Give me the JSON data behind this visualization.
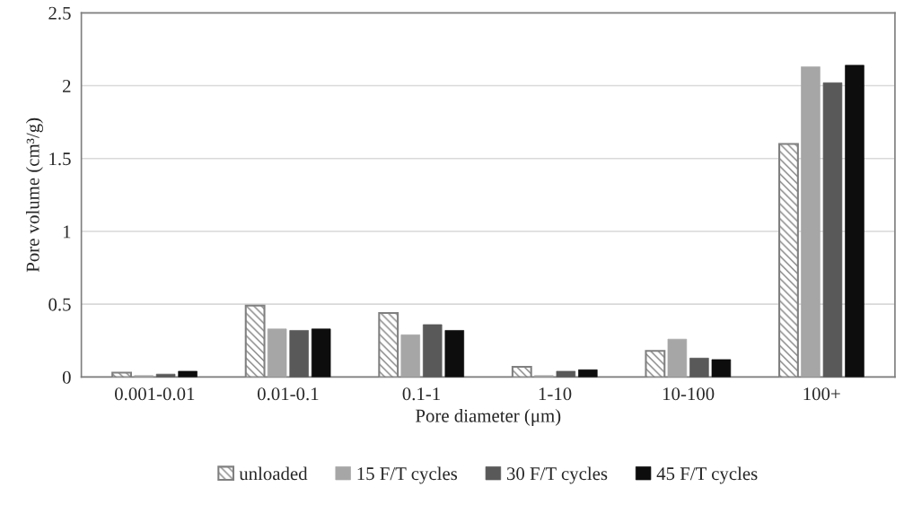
{
  "chart_data": {
    "type": "bar",
    "xlabel": "Pore diameter (μm)",
    "ylabel": "Pore volume (cm³/g)",
    "categories": [
      "0.001-0.01",
      "0.01-0.1",
      "0.1-1",
      "1-10",
      "10-100",
      "100+"
    ],
    "series": [
      {
        "name": "unloaded",
        "color": "#808080",
        "values": [
          0.03,
          0.49,
          0.44,
          0.07,
          0.18,
          1.6
        ]
      },
      {
        "name": "15 F/T cycles",
        "color": "#a6a6a6",
        "values": [
          0.01,
          0.33,
          0.29,
          0.01,
          0.26,
          2.13
        ]
      },
      {
        "name": "30 F/T cycles",
        "color": "#595959",
        "values": [
          0.02,
          0.32,
          0.36,
          0.04,
          0.13,
          2.02
        ]
      },
      {
        "name": "45 F/T cycles",
        "color": "#0d0d0d",
        "values": [
          0.04,
          0.33,
          0.32,
          0.05,
          0.12,
          2.14
        ]
      }
    ],
    "ylim": [
      0,
      2.5
    ],
    "yticks": [
      0,
      0.5,
      1,
      1.5,
      2,
      2.5
    ],
    "grid": "y",
    "legend": "bottom"
  }
}
